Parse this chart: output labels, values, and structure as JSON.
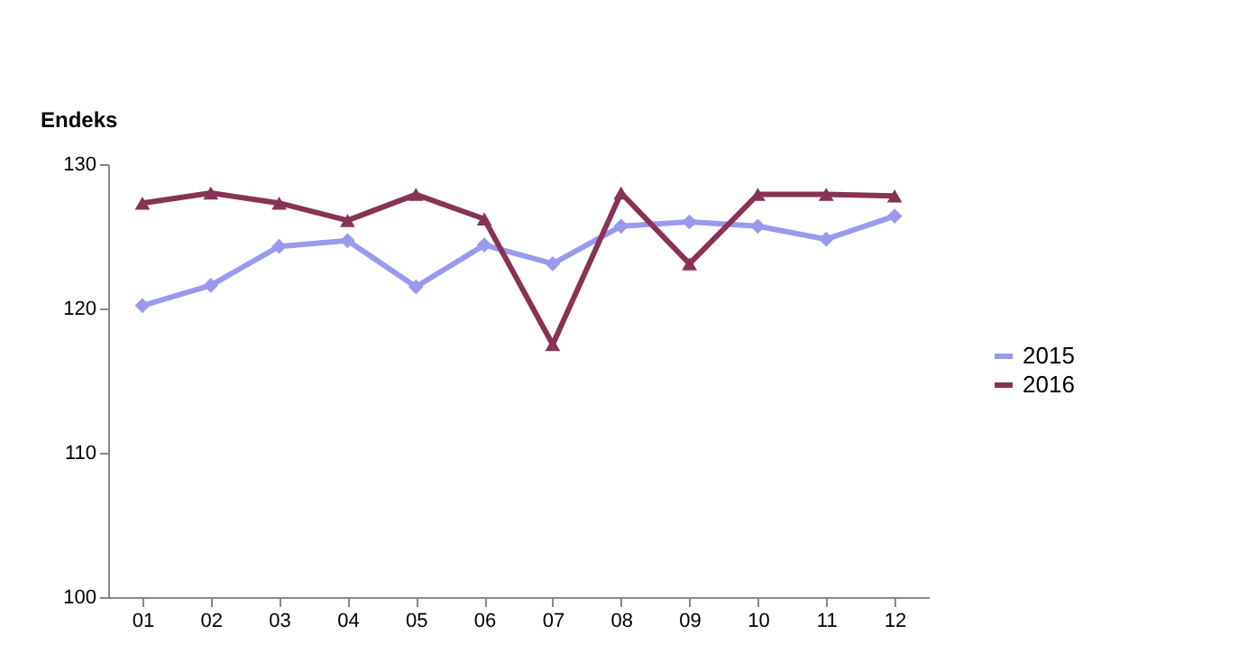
{
  "chart_data": {
    "type": "line",
    "ylabel": "Endeks",
    "categories": [
      "01",
      "02",
      "03",
      "04",
      "05",
      "06",
      "07",
      "08",
      "09",
      "10",
      "11",
      "12"
    ],
    "series": [
      {
        "name": "2015",
        "color": "#9999ee",
        "marker": "diamond",
        "values": [
          120.2,
          121.6,
          124.3,
          124.7,
          121.5,
          124.4,
          123.1,
          125.7,
          126.0,
          125.7,
          124.8,
          126.4
        ]
      },
      {
        "name": "2016",
        "color": "#883355",
        "marker": "triangle",
        "values": [
          127.3,
          128.0,
          127.3,
          126.1,
          127.9,
          126.2,
          117.5,
          128.0,
          123.1,
          127.9,
          127.9,
          127.8
        ]
      }
    ],
    "ylim": [
      100,
      130
    ],
    "yticks": [
      100,
      110,
      120,
      130
    ],
    "grid": false,
    "legend": "right"
  }
}
